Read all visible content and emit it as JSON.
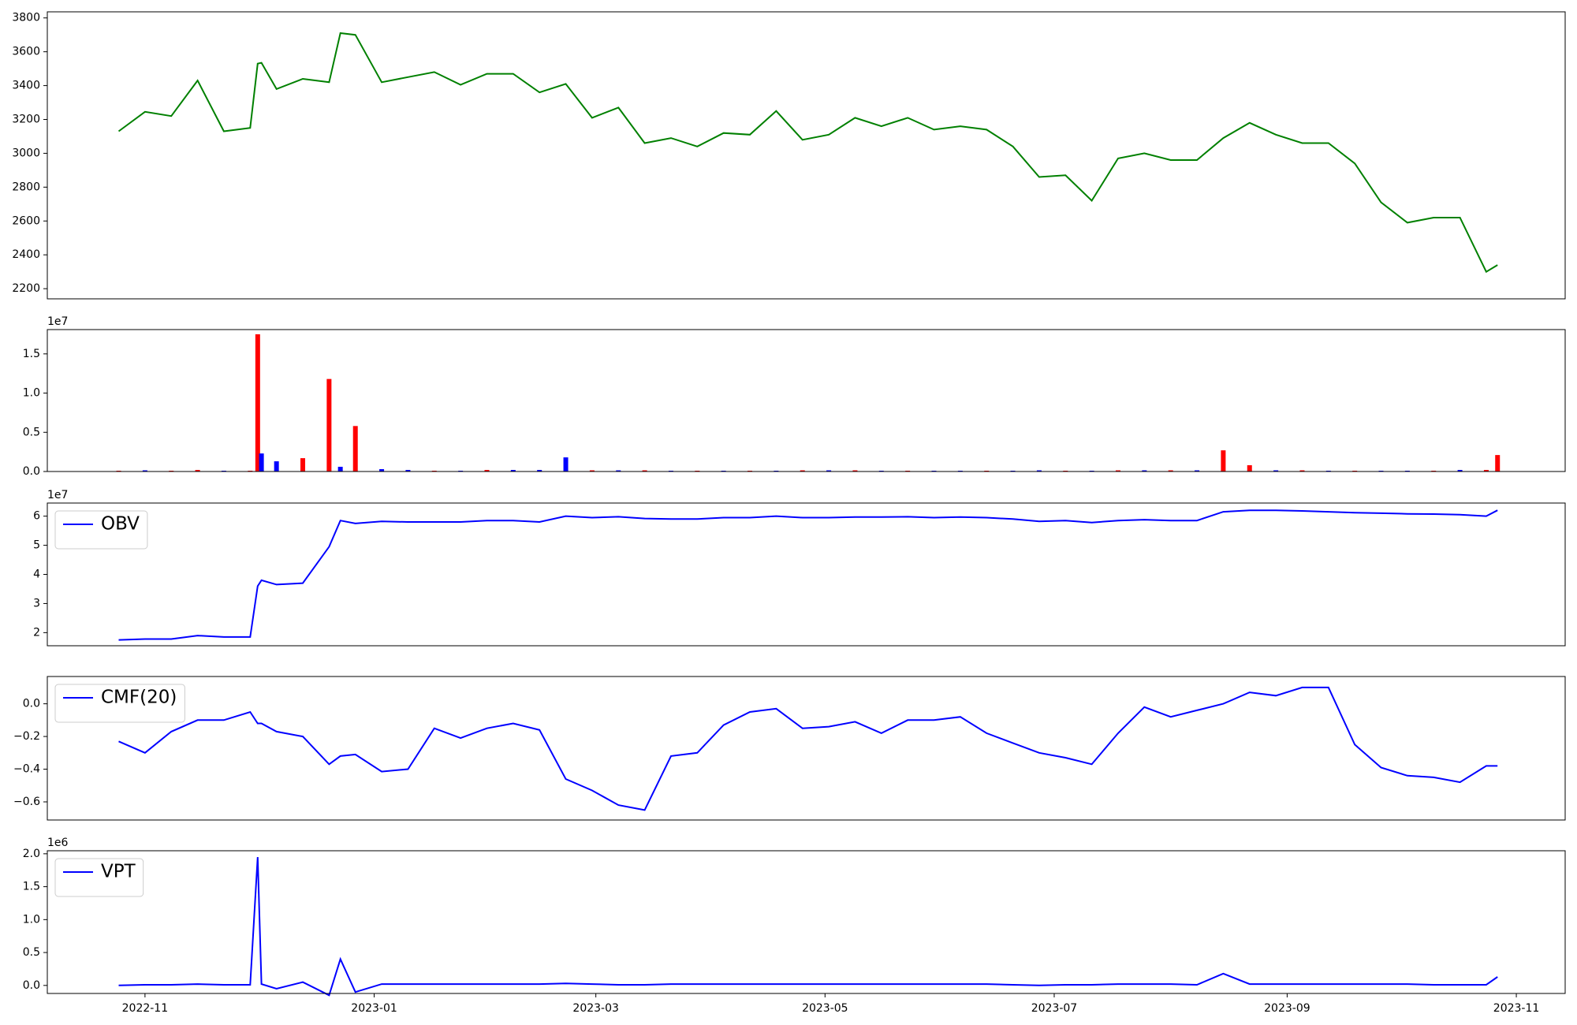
{
  "chart_data": [
    {
      "type": "line",
      "color": "green",
      "x": [
        "2022-10-25",
        "2022-11-01",
        "2022-11-08",
        "2022-11-15",
        "2022-11-22",
        "2022-11-29",
        "2022-12-01",
        "2022-12-02",
        "2022-12-06",
        "2022-12-13",
        "2022-12-20",
        "2022-12-23",
        "2022-12-27",
        "2023-01-03",
        "2023-01-10",
        "2023-01-17",
        "2023-01-24",
        "2023-01-31",
        "2023-02-07",
        "2023-02-14",
        "2023-02-21",
        "2023-02-28",
        "2023-03-07",
        "2023-03-14",
        "2023-03-21",
        "2023-03-28",
        "2023-04-04",
        "2023-04-11",
        "2023-04-18",
        "2023-04-25",
        "2023-05-02",
        "2023-05-09",
        "2023-05-16",
        "2023-05-23",
        "2023-05-30",
        "2023-06-06",
        "2023-06-13",
        "2023-06-20",
        "2023-06-27",
        "2023-07-04",
        "2023-07-11",
        "2023-07-18",
        "2023-07-25",
        "2023-08-01",
        "2023-08-08",
        "2023-08-15",
        "2023-08-22",
        "2023-08-29",
        "2023-09-05",
        "2023-09-12",
        "2023-09-19",
        "2023-09-26",
        "2023-10-03",
        "2023-10-10",
        "2023-10-17",
        "2023-10-24",
        "2023-10-27"
      ],
      "values": [
        3130,
        3245,
        3220,
        3430,
        3130,
        3150,
        3530,
        3535,
        3380,
        3440,
        3420,
        3710,
        3700,
        3420,
        3450,
        3480,
        3405,
        3470,
        3470,
        3360,
        3410,
        3210,
        3270,
        3060,
        3090,
        3040,
        3120,
        3110,
        3250,
        3080,
        3110,
        3210,
        3160,
        3210,
        3140,
        3160,
        3140,
        3040,
        2860,
        2870,
        2720,
        2970,
        3000,
        2960,
        2960,
        3090,
        3180,
        3110,
        3060,
        3060,
        2940,
        2710,
        2590,
        2620,
        2620,
        2300,
        2340
      ],
      "xlim": [
        "2022-10-06",
        "2023-11-14"
      ],
      "ylim": [
        2140,
        3836
      ],
      "yticks": [
        2200,
        2400,
        2600,
        2800,
        3000,
        3200,
        3400,
        3600,
        3800
      ]
    },
    {
      "type": "bar",
      "offset_text": "1e7",
      "x": [
        "2022-10-25",
        "2022-11-01",
        "2022-11-08",
        "2022-11-15",
        "2022-11-22",
        "2022-11-29",
        "2022-12-01",
        "2022-12-02",
        "2022-12-06",
        "2022-12-13",
        "2022-12-20",
        "2022-12-23",
        "2022-12-27",
        "2023-01-03",
        "2023-01-10",
        "2023-01-17",
        "2023-01-24",
        "2023-01-31",
        "2023-02-07",
        "2023-02-14",
        "2023-02-21",
        "2023-02-28",
        "2023-03-07",
        "2023-03-14",
        "2023-03-21",
        "2023-03-28",
        "2023-04-04",
        "2023-04-11",
        "2023-04-18",
        "2023-04-25",
        "2023-05-02",
        "2023-05-09",
        "2023-05-16",
        "2023-05-23",
        "2023-05-30",
        "2023-06-06",
        "2023-06-13",
        "2023-06-20",
        "2023-06-27",
        "2023-07-04",
        "2023-07-11",
        "2023-07-18",
        "2023-07-25",
        "2023-08-01",
        "2023-08-08",
        "2023-08-15",
        "2023-08-22",
        "2023-08-29",
        "2023-09-05",
        "2023-09-12",
        "2023-09-19",
        "2023-09-26",
        "2023-10-03",
        "2023-10-10",
        "2023-10-17",
        "2023-10-24",
        "2023-10-27"
      ],
      "values": [
        100000,
        150000,
        100000,
        200000,
        100000,
        100000,
        17500000,
        2300000,
        1300000,
        1700000,
        11800000,
        600000,
        5800000,
        300000,
        200000,
        100000,
        100000,
        200000,
        200000,
        200000,
        1800000,
        150000,
        150000,
        150000,
        100000,
        100000,
        100000,
        100000,
        100000,
        150000,
        150000,
        150000,
        100000,
        100000,
        100000,
        100000,
        100000,
        100000,
        150000,
        100000,
        100000,
        150000,
        150000,
        150000,
        150000,
        2700000,
        800000,
        150000,
        150000,
        100000,
        100000,
        100000,
        100000,
        100000,
        200000,
        200000,
        2100000
      ],
      "colors": [
        "red",
        "blue",
        "red",
        "red",
        "blue",
        "red",
        "red",
        "blue",
        "blue",
        "red",
        "red",
        "blue",
        "red",
        "blue",
        "blue",
        "red",
        "blue",
        "red",
        "blue",
        "blue",
        "blue",
        "red",
        "blue",
        "red",
        "blue",
        "red",
        "blue",
        "red",
        "blue",
        "red",
        "blue",
        "red",
        "blue",
        "red",
        "blue",
        "blue",
        "red",
        "blue",
        "blue",
        "red",
        "blue",
        "red",
        "blue",
        "red",
        "blue",
        "red",
        "red",
        "blue",
        "red",
        "blue",
        "red",
        "blue",
        "blue",
        "red",
        "blue",
        "red",
        "red"
      ],
      "xlim": [
        "2022-10-06",
        "2023-11-14"
      ],
      "ylim": [
        0,
        18100000
      ],
      "yticks": [
        {
          "value": 0,
          "label": "0.0"
        },
        {
          "value": 5000000,
          "label": "0.5"
        },
        {
          "value": 10000000,
          "label": "1.0"
        },
        {
          "value": 15000000,
          "label": "1.5"
        }
      ]
    },
    {
      "type": "line",
      "offset_text": "1e7",
      "legend": "upper left",
      "x": [
        "2022-10-25",
        "2022-11-01",
        "2022-11-08",
        "2022-11-15",
        "2022-11-22",
        "2022-11-29",
        "2022-12-01",
        "2022-12-02",
        "2022-12-06",
        "2022-12-13",
        "2022-12-20",
        "2022-12-23",
        "2022-12-27",
        "2023-01-03",
        "2023-01-10",
        "2023-01-17",
        "2023-01-24",
        "2023-01-31",
        "2023-02-07",
        "2023-02-14",
        "2023-02-21",
        "2023-02-28",
        "2023-03-07",
        "2023-03-14",
        "2023-03-21",
        "2023-03-28",
        "2023-04-04",
        "2023-04-11",
        "2023-04-18",
        "2023-04-25",
        "2023-05-02",
        "2023-05-09",
        "2023-05-16",
        "2023-05-23",
        "2023-05-30",
        "2023-06-06",
        "2023-06-13",
        "2023-06-20",
        "2023-06-27",
        "2023-07-04",
        "2023-07-11",
        "2023-07-18",
        "2023-07-25",
        "2023-08-01",
        "2023-08-08",
        "2023-08-15",
        "2023-08-22",
        "2023-08-29",
        "2023-09-05",
        "2023-09-12",
        "2023-09-19",
        "2023-09-26",
        "2023-10-03",
        "2023-10-10",
        "2023-10-17",
        "2023-10-24",
        "2023-10-27"
      ],
      "series": [
        {
          "name": "OBV",
          "color": "blue",
          "values": [
            17500000,
            17800000,
            17800000,
            19000000,
            18500000,
            18500000,
            36000000,
            38000000,
            36500000,
            37000000,
            49500000,
            58500000,
            57500000,
            58200000,
            58000000,
            58000000,
            58000000,
            58500000,
            58500000,
            58000000,
            60000000,
            59500000,
            59800000,
            59200000,
            59000000,
            59000000,
            59500000,
            59500000,
            60000000,
            59500000,
            59500000,
            59700000,
            59700000,
            59800000,
            59500000,
            59700000,
            59500000,
            59000000,
            58200000,
            58500000,
            57800000,
            58500000,
            58800000,
            58500000,
            58500000,
            61500000,
            62000000,
            62000000,
            61800000,
            61500000,
            61200000,
            61000000,
            60800000,
            60700000,
            60500000,
            60000000,
            62000000
          ]
        }
      ],
      "xlim": [
        "2022-10-06",
        "2023-11-14"
      ],
      "ylim": [
        15500000,
        64500000
      ],
      "yticks": [
        {
          "value": 20000000,
          "label": "2"
        },
        {
          "value": 30000000,
          "label": "3"
        },
        {
          "value": 40000000,
          "label": "4"
        },
        {
          "value": 50000000,
          "label": "5"
        },
        {
          "value": 60000000,
          "label": "6"
        }
      ]
    },
    {
      "type": "line",
      "legend": "upper left",
      "x": [
        "2022-10-25",
        "2022-11-01",
        "2022-11-08",
        "2022-11-15",
        "2022-11-22",
        "2022-11-29",
        "2022-12-01",
        "2022-12-02",
        "2022-12-06",
        "2022-12-13",
        "2022-12-20",
        "2022-12-23",
        "2022-12-27",
        "2023-01-03",
        "2023-01-10",
        "2023-01-17",
        "2023-01-24",
        "2023-01-31",
        "2023-02-07",
        "2023-02-14",
        "2023-02-21",
        "2023-02-28",
        "2023-03-07",
        "2023-03-14",
        "2023-03-21",
        "2023-03-28",
        "2023-04-04",
        "2023-04-11",
        "2023-04-18",
        "2023-04-25",
        "2023-05-02",
        "2023-05-09",
        "2023-05-16",
        "2023-05-23",
        "2023-05-30",
        "2023-06-06",
        "2023-06-13",
        "2023-06-20",
        "2023-06-27",
        "2023-07-04",
        "2023-07-11",
        "2023-07-18",
        "2023-07-25",
        "2023-08-01",
        "2023-08-08",
        "2023-08-15",
        "2023-08-22",
        "2023-08-29",
        "2023-09-05",
        "2023-09-12",
        "2023-09-19",
        "2023-09-26",
        "2023-10-03",
        "2023-10-10",
        "2023-10-17",
        "2023-10-24",
        "2023-10-27"
      ],
      "series": [
        {
          "name": "CMF(20)",
          "color": "blue",
          "values": [
            -0.23,
            -0.3,
            -0.17,
            -0.1,
            -0.1,
            -0.05,
            -0.12,
            -0.12,
            -0.17,
            -0.2,
            -0.37,
            -0.32,
            -0.31,
            -0.415,
            -0.4,
            -0.15,
            -0.21,
            -0.15,
            -0.12,
            -0.16,
            -0.46,
            -0.53,
            -0.62,
            -0.65,
            -0.32,
            -0.3,
            -0.13,
            -0.05,
            -0.03,
            -0.15,
            -0.14,
            -0.11,
            -0.18,
            -0.1,
            -0.1,
            -0.08,
            -0.18,
            -0.24,
            -0.3,
            -0.33,
            -0.37,
            -0.18,
            -0.02,
            -0.08,
            -0.04,
            0,
            0.07,
            0.05,
            0.1,
            0.1,
            -0.25,
            -0.39,
            -0.44,
            -0.45,
            -0.48,
            -0.38,
            -0.38
          ]
        }
      ],
      "xlim": [
        "2022-10-06",
        "2023-11-14"
      ],
      "ylim": [
        -0.711,
        0.167
      ],
      "yticks": [
        {
          "value": -0.6,
          "label": "−0.6"
        },
        {
          "value": -0.4,
          "label": "−0.4"
        },
        {
          "value": -0.2,
          "label": "−0.2"
        },
        {
          "value": 0,
          "label": "0.0"
        }
      ]
    },
    {
      "type": "line",
      "offset_text": "1e6",
      "legend": "upper left",
      "x": [
        "2022-10-25",
        "2022-11-01",
        "2022-11-08",
        "2022-11-15",
        "2022-11-22",
        "2022-11-29",
        "2022-12-01",
        "2022-12-02",
        "2022-12-06",
        "2022-12-13",
        "2022-12-20",
        "2022-12-23",
        "2022-12-27",
        "2023-01-03",
        "2023-01-10",
        "2023-01-17",
        "2023-01-24",
        "2023-01-31",
        "2023-02-07",
        "2023-02-14",
        "2023-02-21",
        "2023-02-28",
        "2023-03-07",
        "2023-03-14",
        "2023-03-21",
        "2023-03-28",
        "2023-04-04",
        "2023-04-11",
        "2023-04-18",
        "2023-04-25",
        "2023-05-02",
        "2023-05-09",
        "2023-05-16",
        "2023-05-23",
        "2023-05-30",
        "2023-06-06",
        "2023-06-13",
        "2023-06-20",
        "2023-06-27",
        "2023-07-04",
        "2023-07-11",
        "2023-07-18",
        "2023-07-25",
        "2023-08-01",
        "2023-08-08",
        "2023-08-15",
        "2023-08-22",
        "2023-08-29",
        "2023-09-05",
        "2023-09-12",
        "2023-09-19",
        "2023-09-26",
        "2023-10-03",
        "2023-10-10",
        "2023-10-17",
        "2023-10-24",
        "2023-10-27"
      ],
      "series": [
        {
          "name": "VPT",
          "color": "blue",
          "values": [
            0,
            10000,
            10000,
            20000,
            10000,
            10000,
            1950000,
            20000,
            -50000,
            50000,
            -150000,
            400000,
            -100000,
            20000,
            20000,
            20000,
            20000,
            20000,
            20000,
            20000,
            30000,
            20000,
            10000,
            10000,
            20000,
            20000,
            20000,
            20000,
            20000,
            20000,
            20000,
            20000,
            20000,
            20000,
            20000,
            20000,
            20000,
            10000,
            0,
            10000,
            10000,
            20000,
            20000,
            20000,
            10000,
            180000,
            20000,
            20000,
            20000,
            20000,
            20000,
            20000,
            20000,
            10000,
            10000,
            10000,
            130000
          ]
        }
      ],
      "xlim": [
        "2022-10-06",
        "2023-11-14"
      ],
      "ylim": [
        -122000,
        2046000
      ],
      "yticks": [
        {
          "value": 0,
          "label": "0.0"
        },
        {
          "value": 500000,
          "label": "0.5"
        },
        {
          "value": 1000000,
          "label": "1.0"
        },
        {
          "value": 1500000,
          "label": "1.5"
        },
        {
          "value": 2000000,
          "label": "2.0"
        }
      ],
      "xticks": [
        {
          "value": "2022-11-01",
          "label": "2022-11"
        },
        {
          "value": "2023-01-01",
          "label": "2023-01"
        },
        {
          "value": "2023-03-01",
          "label": "2023-03"
        },
        {
          "value": "2023-05-01",
          "label": "2023-05"
        },
        {
          "value": "2023-07-01",
          "label": "2023-07"
        },
        {
          "value": "2023-09-01",
          "label": "2023-09"
        },
        {
          "value": "2023-11-01",
          "label": "2023-11"
        }
      ]
    }
  ]
}
